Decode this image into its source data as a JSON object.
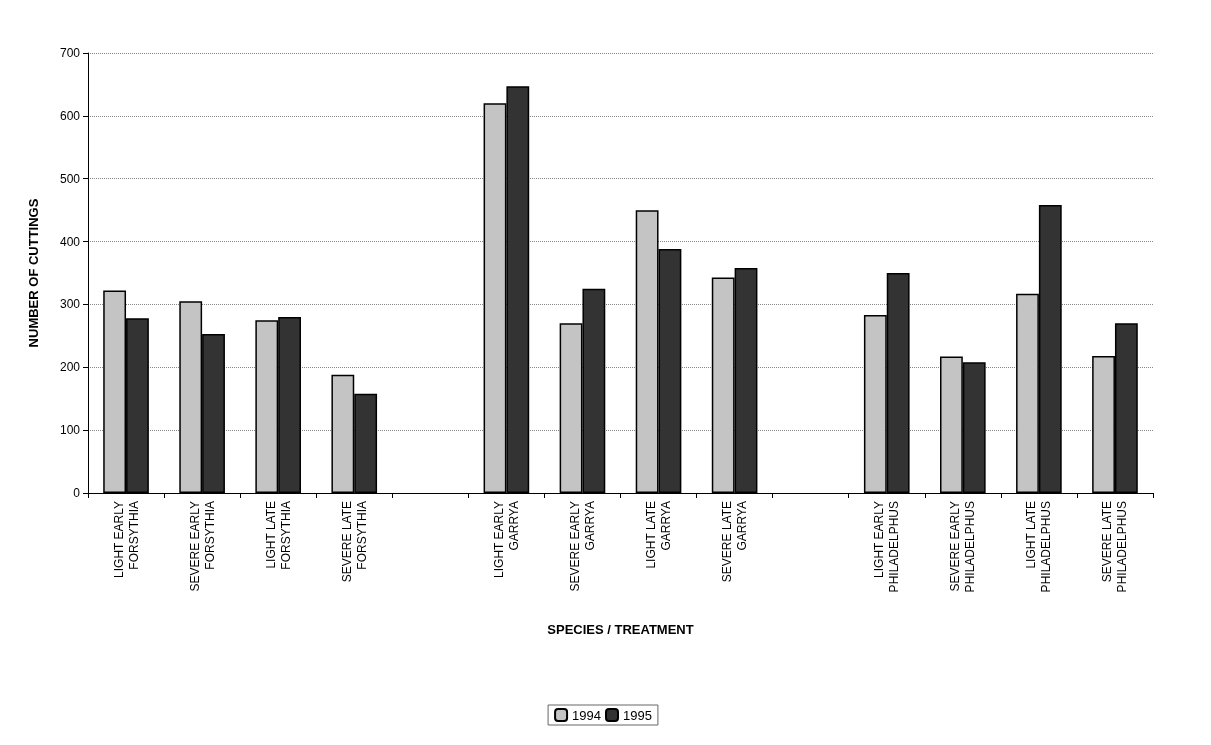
{
  "chart_data": {
    "type": "bar",
    "xlabel": "SPECIES / TREATMENT",
    "ylabel": "NUMBER OF CUTTINGS",
    "categories": [
      "LIGHT EARLY FORSYTHIA",
      "SEVERE EARLY FORSYTHIA",
      "LIGHT LATE FORSYTHIA",
      "SEVERE LATE FORSYTHIA",
      null,
      "LIGHT EARLY GARRYA",
      "SEVERE EARLY GARRYA",
      "LIGHT LATE GARRYA",
      "SEVERE LATE GARRYA",
      null,
      "LIGHT EARLY PHILADELPHUS",
      "SEVERE EARLY PHILADELPHUS",
      "LIGHT LATE PHILADELPHUS",
      "SEVERE LATE PHILADELPHUS"
    ],
    "series": [
      {
        "name": "1994",
        "color": "#c4c4c4",
        "values": [
          322,
          305,
          275,
          188,
          null,
          620,
          270,
          450,
          343,
          null,
          283,
          217,
          317,
          218
        ]
      },
      {
        "name": "1995",
        "color": "#333333",
        "values": [
          278,
          253,
          280,
          158,
          null,
          647,
          325,
          388,
          358,
          null,
          350,
          208,
          458,
          270
        ]
      }
    ],
    "ylim": [
      0,
      700
    ],
    "yticks": [
      0,
      100,
      200,
      300,
      400,
      500,
      600,
      700
    ],
    "grid": "y",
    "legend": "bottom"
  }
}
